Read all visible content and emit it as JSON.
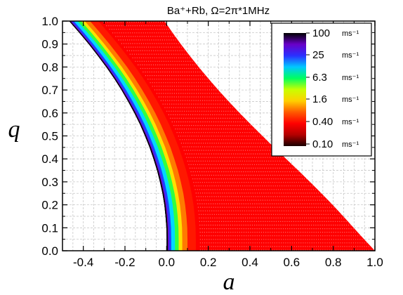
{
  "chart_data": {
    "type": "heatmap",
    "title": "Ba⁺+Rb, Ω=2π*1MHz",
    "xlabel": "a",
    "ylabel": "q",
    "xlim": [
      -0.5,
      1.0
    ],
    "ylim": [
      0.0,
      1.0
    ],
    "x_ticks": [
      "-0.4",
      "-0.2",
      "0.0",
      "0.2",
      "0.4",
      "0.6",
      "0.8",
      "1.0"
    ],
    "x_tick_values": [
      -0.4,
      -0.2,
      0.0,
      0.2,
      0.4,
      0.6,
      0.8,
      1.0
    ],
    "y_ticks": [
      "0.0",
      "0.1",
      "0.2",
      "0.3",
      "0.4",
      "0.5",
      "0.6",
      "0.7",
      "0.8",
      "0.9",
      "1.0"
    ],
    "y_tick_values": [
      0.0,
      0.1,
      0.2,
      0.3,
      0.4,
      0.5,
      0.6,
      0.7,
      0.8,
      0.9,
      1.0
    ],
    "grid": true,
    "colorbar": {
      "labels": [
        {
          "value": "100",
          "unit": "ms⁻¹"
        },
        {
          "value": "25",
          "unit": "ms⁻¹"
        },
        {
          "value": "6.3",
          "unit": "ms⁻¹"
        },
        {
          "value": "1.6",
          "unit": "ms⁻¹"
        },
        {
          "value": "0.40",
          "unit": "ms⁻¹"
        },
        {
          "value": "0.10",
          "unit": "ms⁻¹"
        }
      ],
      "scale": "log",
      "colors_top_to_bottom": [
        "#000000",
        "#6a00c8",
        "#2a30ff",
        "#00c8ff",
        "#00ff60",
        "#c8ff00",
        "#ffd000",
        "#ff5a00",
        "#ff0000",
        "#b40000",
        "#1a0000"
      ],
      "placement": "top-right"
    },
    "stable_region": {
      "left_boundary": [
        [
          0.0,
          0.0
        ],
        [
          0.0,
          0.05
        ],
        [
          -0.001,
          0.1
        ],
        [
          -0.005,
          0.15
        ],
        [
          -0.011,
          0.2
        ],
        [
          -0.02,
          0.25
        ],
        [
          -0.032,
          0.3
        ],
        [
          -0.046,
          0.35
        ],
        [
          -0.063,
          0.4
        ],
        [
          -0.082,
          0.45
        ],
        [
          -0.104,
          0.5
        ],
        [
          -0.128,
          0.55
        ],
        [
          -0.155,
          0.6
        ],
        [
          -0.185,
          0.65
        ],
        [
          -0.217,
          0.7
        ],
        [
          -0.252,
          0.75
        ],
        [
          -0.29,
          0.8
        ],
        [
          -0.331,
          0.85
        ],
        [
          -0.374,
          0.9
        ],
        [
          -0.42,
          0.95
        ],
        [
          -0.468,
          1.0
        ]
      ],
      "right_boundary": [
        [
          1.0,
          0.0
        ],
        [
          0.948,
          0.05
        ],
        [
          0.898,
          0.1
        ],
        [
          0.848,
          0.15
        ],
        [
          0.797,
          0.2
        ],
        [
          0.743,
          0.25
        ],
        [
          0.688,
          0.3
        ],
        [
          0.632,
          0.35
        ],
        [
          0.574,
          0.4
        ],
        [
          0.516,
          0.45
        ],
        [
          0.46,
          0.5
        ],
        [
          0.404,
          0.55
        ],
        [
          0.35,
          0.6
        ],
        [
          0.298,
          0.65
        ],
        [
          0.248,
          0.7
        ],
        [
          0.2,
          0.75
        ],
        [
          0.154,
          0.8
        ],
        [
          0.11,
          0.85
        ],
        [
          0.068,
          0.9
        ],
        [
          0.028,
          0.95
        ],
        [
          -0.01,
          1.0
        ]
      ],
      "band_offsets_from_left_boundary": {
        "black": 0.006,
        "purple": 0.011,
        "blue": 0.022,
        "cyan": 0.04,
        "green": 0.058,
        "yellow": 0.075,
        "orange": 0.1,
        "red": 0.14
      },
      "upper_edge": [
        [
          -0.47,
          1.0
        ],
        [
          0.13,
          1.0
        ]
      ]
    }
  }
}
